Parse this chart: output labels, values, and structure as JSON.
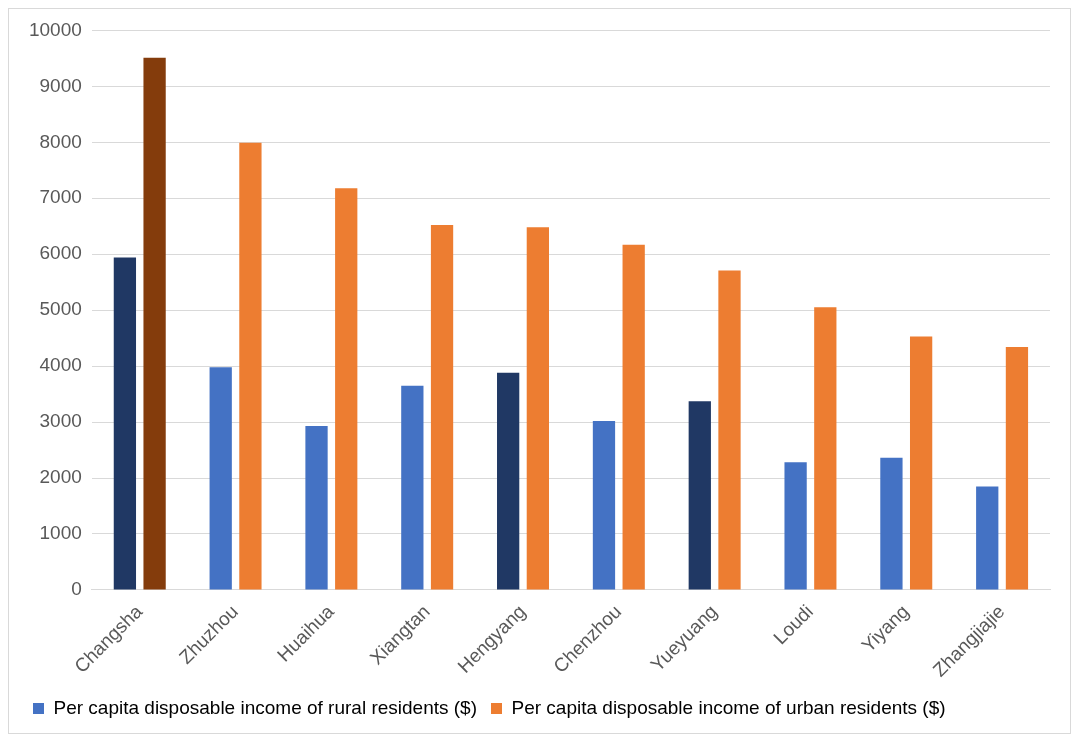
{
  "chart_data": {
    "type": "bar",
    "categories": [
      "Changsha",
      "Zhuzhou",
      "Huaihua",
      "Xiangtan",
      "Hengyang",
      "Chenzhou",
      "Yueyuang",
      "Loudi",
      "Yiyang",
      "Zhangjiajie"
    ],
    "series": [
      {
        "name": "Per capita disposable income of rural residents ($)",
        "color": "#4472c4",
        "colors": [
          "#203864",
          "#4472c4",
          "#4472c4",
          "#4472c4",
          "#203864",
          "#4472c4",
          "#203864",
          "#4472c4",
          "#4472c4",
          "#4472c4"
        ],
        "values": [
          5940,
          3980,
          2930,
          3650,
          3880,
          3020,
          3370,
          2280,
          2360,
          1850
        ]
      },
      {
        "name": "Per capita disposable income of urban residents ($)",
        "color": "#ed7d31",
        "colors": [
          "#843c0c",
          "#ed7d31",
          "#ed7d31",
          "#ed7d31",
          "#ed7d31",
          "#ed7d31",
          "#ed7d31",
          "#ed7d31",
          "#ed7d31",
          "#ed7d31"
        ],
        "values": [
          9510,
          7990,
          7180,
          6520,
          6480,
          6170,
          5710,
          5050,
          4530,
          4340
        ]
      }
    ],
    "ylim": [
      0,
      10000
    ],
    "yticks": [
      0,
      1000,
      2000,
      3000,
      4000,
      5000,
      6000,
      7000,
      8000,
      9000,
      10000
    ],
    "grid": "y",
    "legend": "bottom"
  }
}
